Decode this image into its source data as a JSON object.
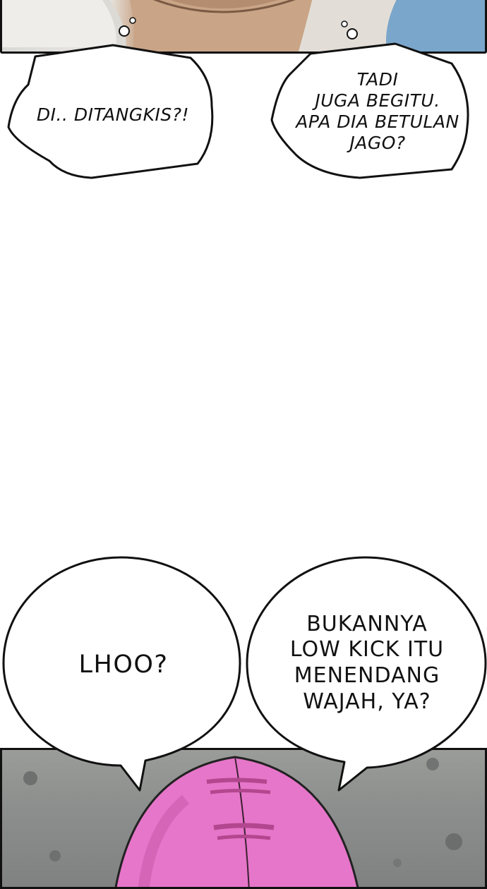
{
  "bubbles": {
    "b1": {
      "text": "DI.. DITANGKIS?!"
    },
    "b2": {
      "lines": [
        "TADI",
        "JUGA BEGITU.",
        "APA DIA BETULAN",
        "JAGO?"
      ]
    },
    "b3": {
      "text": "LHOO?"
    },
    "b4": {
      "lines": [
        "BUKANNYA",
        "LOW KICK ITU",
        "MENENDANG",
        "WAJAH, YA?"
      ]
    }
  },
  "colors": {
    "panel_border": "#111111",
    "skin": "#c9a68a",
    "shirt_blue": "#6e9cc4",
    "helmet_pink": "#e676c9",
    "wall_gray": "#8c8f8d"
  }
}
